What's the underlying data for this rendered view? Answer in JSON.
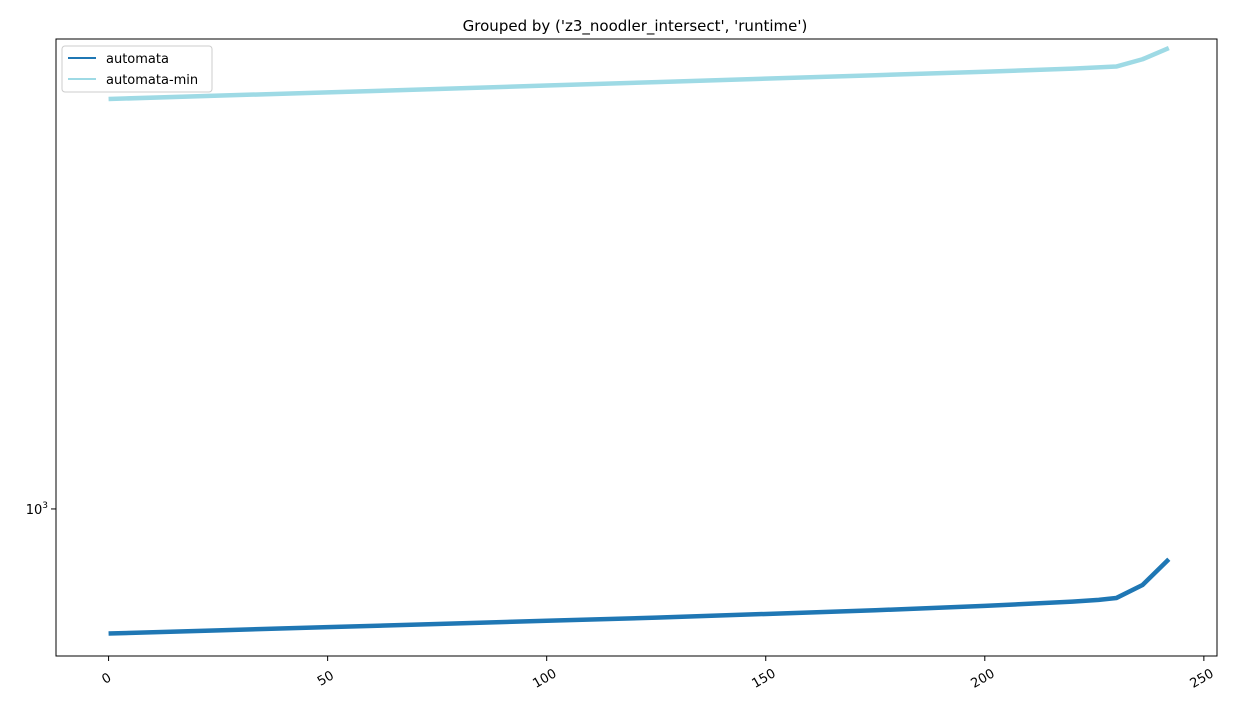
{
  "chart_data": {
    "type": "line",
    "title": "Grouped by ('z3_noodler_intersect', 'runtime')",
    "xlabel": "",
    "ylabel": "",
    "xlim": [
      -12,
      253
    ],
    "ylim": [
      747,
      2540
    ],
    "yscale": "log",
    "grid": false,
    "legend": "top-left",
    "x_ticks": [
      {
        "value": 0,
        "label": "0"
      },
      {
        "value": 50,
        "label": "50"
      },
      {
        "value": 100,
        "label": "100"
      },
      {
        "value": 150,
        "label": "150"
      },
      {
        "value": 200,
        "label": "200"
      },
      {
        "value": 250,
        "label": "250"
      }
    ],
    "y_ticks": [
      {
        "value": 1000,
        "base": "10",
        "exponent": "3"
      }
    ],
    "series": [
      {
        "name": "automata",
        "color": "#1f77b4",
        "x": [
          0,
          25,
          50,
          75,
          100,
          125,
          150,
          175,
          200,
          220,
          226,
          230,
          236,
          242
        ],
        "y": [
          781,
          786,
          791,
          796,
          801,
          806,
          812,
          818,
          825,
          832,
          835,
          838,
          860,
          905
        ]
      },
      {
        "name": "automata-min",
        "color": "#9edae5",
        "x": [
          0,
          25,
          50,
          75,
          100,
          125,
          150,
          175,
          200,
          220,
          230,
          236,
          242
        ],
        "y": [
          2255,
          2270,
          2285,
          2300,
          2316,
          2332,
          2348,
          2364,
          2380,
          2395,
          2405,
          2440,
          2495
        ]
      }
    ]
  }
}
